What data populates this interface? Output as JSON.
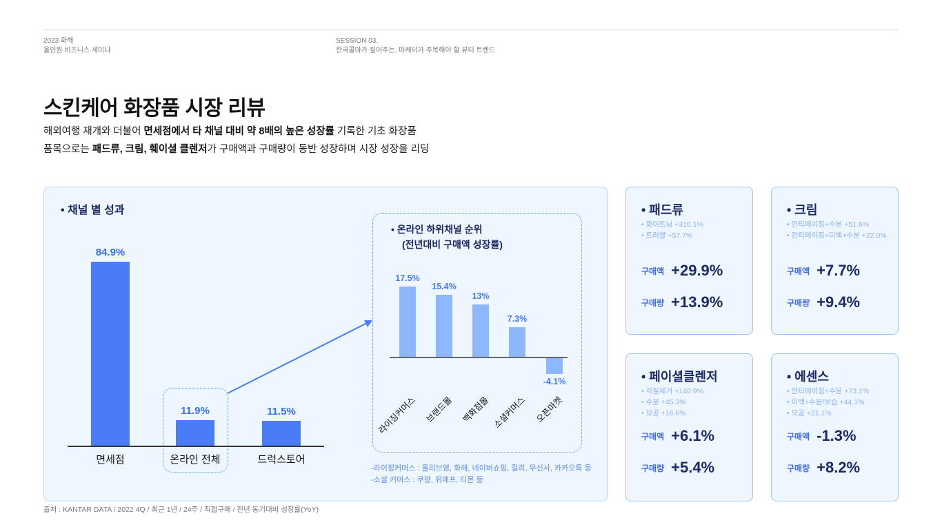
{
  "header": {
    "left_line1": "2023 화해",
    "left_line2": "올인원 비즈니스 세미나",
    "right_line1": "SESSION 03.",
    "right_line2": "한국콜마가 짚어주는, 마케터가 주목해야 할 뷰티 트렌드"
  },
  "title": "스킨케어 화장품 시장 리뷰",
  "subtitle": {
    "line1": [
      {
        "t": "해외여행 재개와 더불어 ",
        "b": false
      },
      {
        "t": "면세점에서 타 채널 대비 약 8배의 높은 성장률",
        "b": true
      },
      {
        "t": " 기록한 기초 화장품",
        "b": false
      }
    ],
    "line2": [
      {
        "t": "품목으로는 ",
        "b": false
      },
      {
        "t": "패드류, 크림, 훼이셜 클렌저",
        "b": true
      },
      {
        "t": "가 구매액과 구매량이 동반 성장하며 시장 성장을 리딩",
        "b": false
      }
    ]
  },
  "panel_title": "• 채널 별 성과",
  "chart_data": [
    {
      "type": "bar",
      "title": "채널 별 성과",
      "categories": [
        "면세점",
        "온라인 전체",
        "드럭스토어"
      ],
      "values": [
        84.9,
        11.9,
        11.5
      ],
      "labels": [
        "84.9%",
        "11.9%",
        "11.5%"
      ],
      "unit": "%"
    },
    {
      "type": "bar",
      "title": "온라인 하위채널 순위 (전년대비 구매액 성장률)",
      "categories": [
        "라이징커머스",
        "브랜드몰",
        "백화점몰",
        "소셜커머스",
        "오픈마켓"
      ],
      "values": [
        17.5,
        15.4,
        13,
        7.3,
        -4.1
      ],
      "labels": [
        "17.5%",
        "15.4%",
        "13%",
        "7.3%",
        "-4.1%"
      ],
      "unit": "%"
    }
  ],
  "inner_title1": "• 온라인 하위채널 순위",
  "inner_title2": "(전년대비 구매액 성장률)",
  "notes": [
    "-라이징커머스 : 올리브영, 화해, 네이버쇼핑, 컬리, 무신사, 카카오톡 등",
    "-소셜 커머스 : 쿠팡, 위메프, 티몬 등"
  ],
  "cards": [
    {
      "title": "• 패드류",
      "subs": [
        "• 화이트닝 +310.1%",
        "• 트러블 +57.7%"
      ],
      "amount_label": "구매액",
      "amount": "+29.9%",
      "volume_label": "구매량",
      "volume": "+13.9%"
    },
    {
      "title": "• 크림",
      "subs": [
        "• 안티에이징+수분 +51.6%",
        "• 안티에이징+미백+수분 +22.0%"
      ],
      "amount_label": "구매액",
      "amount": "+7.7%",
      "volume_label": "구매량",
      "volume": "+9.4%"
    },
    {
      "title": "• 페이셜클렌저",
      "subs": [
        "• 각질제거 +140.9%",
        "• 수분 +45.3%",
        "• 모공 +16.6%"
      ],
      "amount_label": "구매액",
      "amount": "+6.1%",
      "volume_label": "구매량",
      "volume": "+5.4%"
    },
    {
      "title": "• 에센스",
      "subs": [
        "• 안티에이징+수분 +73.1%",
        "• 미백+수분/보습 +44.1%",
        "• 모공 +21.1%"
      ],
      "amount_label": "구매액",
      "amount": "-1.3%",
      "volume_label": "구매량",
      "volume": "+8.2%"
    }
  ],
  "source": "출처 : KANTAR DATA / 2022 4Q / 최근 1년 / 24주 / 직접구매 / 전년 동기대비 성장률(YoY)",
  "colors": {
    "bar": "#4a7cf8",
    "inner_bar": "#8db8ff",
    "navy": "#1a2a66",
    "panel_bg": "#eef6ff"
  }
}
